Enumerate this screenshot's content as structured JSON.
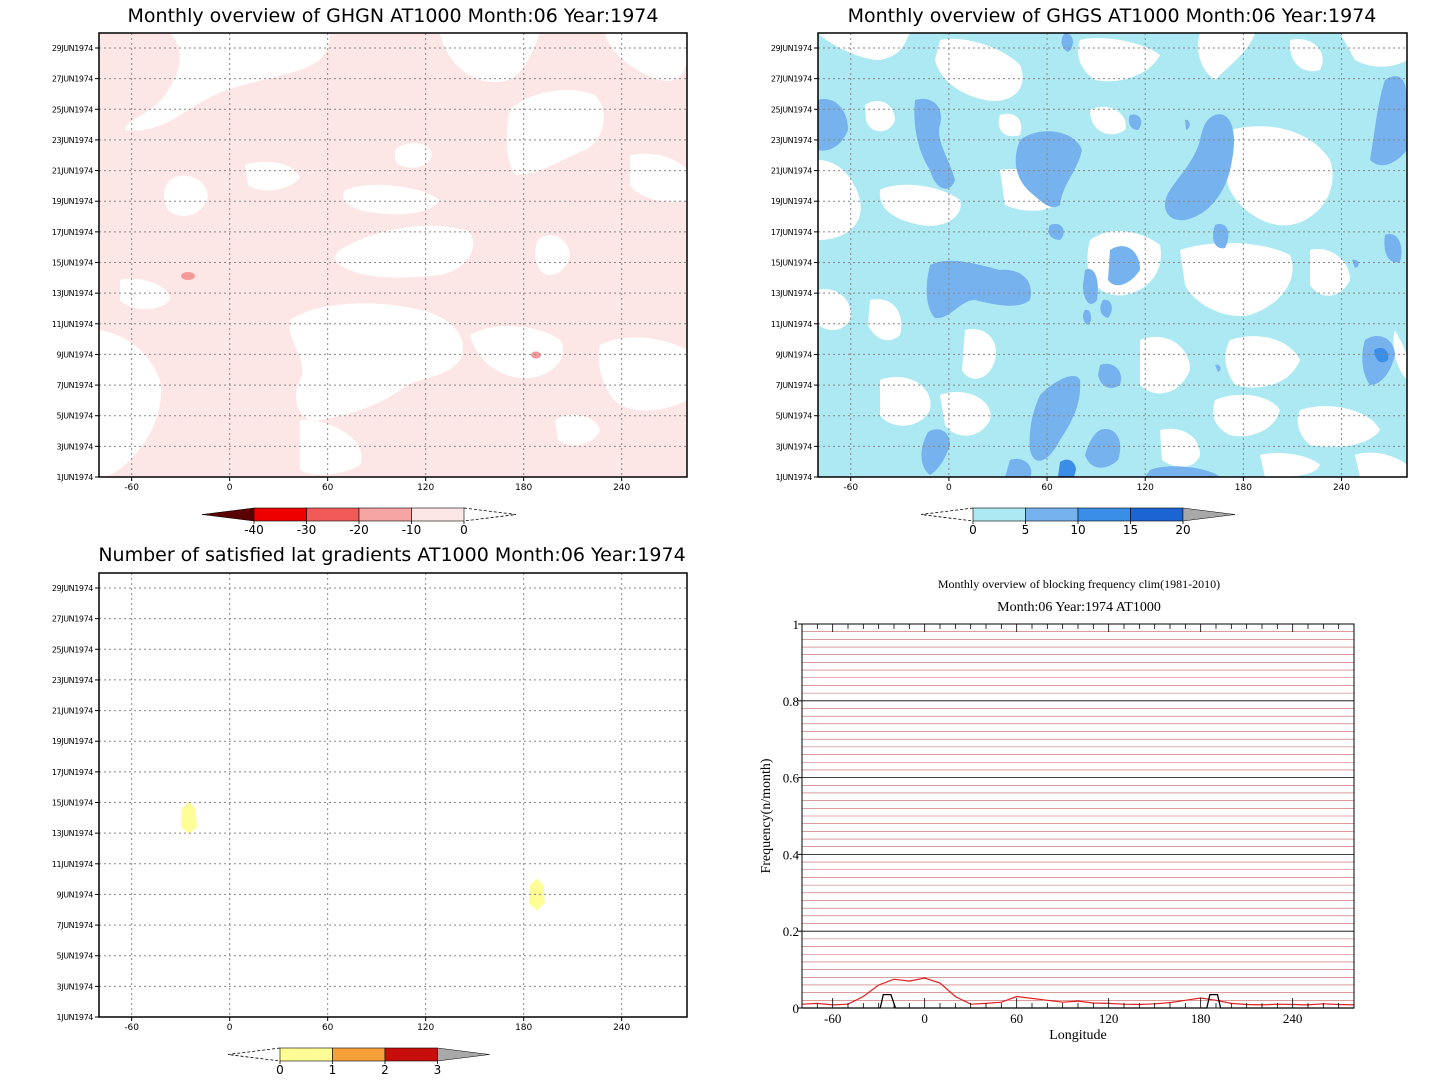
{
  "panels": {
    "ghgn": {
      "title": "Monthly overview of GHGN AT1000 Month:06 Year:1974"
    },
    "ghgs": {
      "title": "Monthly overview of GHGS AT1000 Month:06 Year:1974"
    },
    "lat": {
      "title": "Number of satisfied lat gradients AT1000 Month:06 Year:1974"
    },
    "freq": {
      "title": "Monthly overview of blocking frequency clim(1981-2010)",
      "subtitle": "Month:06 Year:1974  AT1000",
      "xlabel": "Longitude",
      "ylabel": "Frequency(n/month)"
    }
  },
  "shared_axes": {
    "x_ticks": [
      -60,
      0,
      60,
      120,
      180,
      240
    ],
    "y_date_ticks": [
      "29JUN1974",
      "27JUN1974",
      "25JUN1974",
      "23JUN1974",
      "21JUN1974",
      "19JUN1974",
      "17JUN1974",
      "15JUN1974",
      "13JUN1974",
      "11JUN1974",
      "9JUN1974",
      "7JUN1974",
      "5JUN1974",
      "3JUN1974",
      "1JUN1974"
    ]
  },
  "colorbars": {
    "ghgn": {
      "labels": [
        "-40",
        "-30",
        "-20",
        "-10",
        "0"
      ],
      "colors": [
        "#5a0000",
        "#ee0000",
        "#f25a5a",
        "#f6a4a4",
        "#fde6e6"
      ]
    },
    "ghgs": {
      "labels": [
        "0",
        "5",
        "10",
        "15",
        "20"
      ],
      "colors": [
        "#ade9f3",
        "#76b2ee",
        "#3b8ee8",
        "#1c64d2",
        "#a8a8a8"
      ]
    },
    "lat": {
      "labels": [
        "0",
        "1",
        "2",
        "3"
      ],
      "colors": [
        "#fffd95",
        "#f7a03a",
        "#c80d0d",
        "#a8a8a8"
      ]
    }
  },
  "chart_data": [
    {
      "type": "heatmap",
      "title": "Monthly overview of GHGN AT1000 Month:06 Year:1974",
      "x_range": [
        -80,
        280
      ],
      "y_range": [
        "1JUN1974",
        "30JUN1974"
      ],
      "contour_levels": [
        -40,
        -30,
        -20,
        -10,
        0
      ],
      "colors": [
        "#5a0000",
        "#ee0000",
        "#f25a5a",
        "#f6a4a4",
        "#fde6e6"
      ]
    },
    {
      "type": "heatmap",
      "title": "Monthly overview of GHGS AT1000 Month:06 Year:1974",
      "x_range": [
        -80,
        280
      ],
      "y_range": [
        "1JUN1974",
        "30JUN1974"
      ],
      "contour_levels": [
        0,
        5,
        10,
        15,
        20
      ],
      "colors": [
        "#ade9f3",
        "#76b2ee",
        "#3b8ee8",
        "#1c64d2",
        "#a8a8a8"
      ]
    },
    {
      "type": "heatmap",
      "title": "Number of satisfied lat gradients AT1000 Month:06 Year:1974",
      "x_range": [
        -80,
        280
      ],
      "y_range": [
        "1JUN1974",
        "30JUN1974"
      ],
      "contour_levels": [
        0,
        1,
        2,
        3
      ],
      "colors": [
        "#fffd95",
        "#f7a03a",
        "#c80d0d",
        "#a8a8a8"
      ],
      "cells": [
        {
          "lon": -25,
          "date": "14JUN1974",
          "value": 1
        },
        {
          "lon": 188,
          "date": "9JUN1974",
          "value": 1
        }
      ]
    },
    {
      "type": "line",
      "title": "Monthly overview of blocking frequency clim(1981-2010)",
      "subtitle": "Month:06 Year:1974  AT1000",
      "xlabel": "Longitude",
      "ylabel": "Frequency(n/month)",
      "xlim": [
        -80,
        280
      ],
      "ylim": [
        0,
        1
      ],
      "x_ticks": [
        -60,
        0,
        60,
        120,
        180,
        240
      ],
      "y_ticks": [
        0,
        0.2,
        0.4,
        0.6,
        0.8,
        1
      ],
      "series": [
        {
          "color": "#e02020",
          "x": [
            -80,
            -70,
            -60,
            -50,
            -40,
            -30,
            -20,
            -10,
            0,
            10,
            20,
            30,
            40,
            50,
            60,
            70,
            80,
            90,
            100,
            110,
            120,
            130,
            140,
            150,
            160,
            170,
            180,
            190,
            200,
            210,
            220,
            230,
            240,
            250,
            260,
            270,
            280
          ],
          "y": [
            0.01,
            0.012,
            0.008,
            0.01,
            0.03,
            0.06,
            0.075,
            0.07,
            0.078,
            0.065,
            0.03,
            0.01,
            0.012,
            0.015,
            0.03,
            0.025,
            0.02,
            0.015,
            0.018,
            0.013,
            0.012,
            0.01,
            0.009,
            0.011,
            0.014,
            0.02,
            0.026,
            0.02,
            0.012,
            0.009,
            0.008,
            0.01,
            0.009,
            0.008,
            0.011,
            0.009,
            0.008
          ]
        },
        {
          "color": "#000000",
          "x": [
            -80,
            -36,
            -29,
            -27,
            -22,
            -19,
            0,
            180,
            184,
            186,
            191,
            193,
            280
          ],
          "y": [
            0,
            0,
            0,
            0.035,
            0.035,
            0,
            0,
            0,
            0,
            0.035,
            0.035,
            0,
            0
          ]
        }
      ]
    }
  ]
}
